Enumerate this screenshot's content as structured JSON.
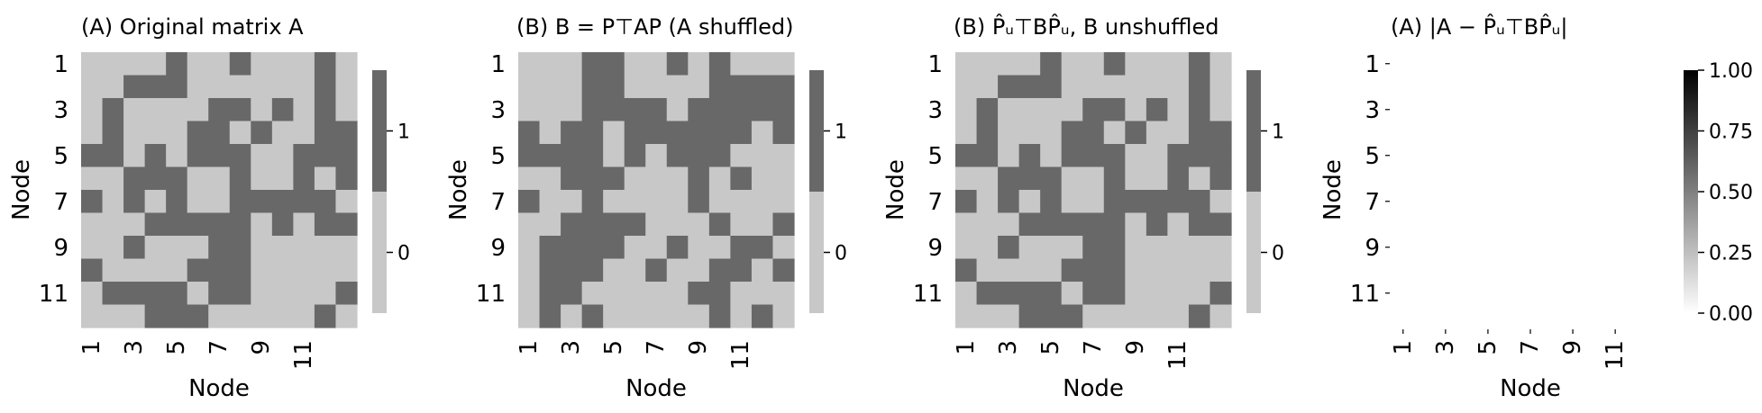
{
  "chart_data": [
    {
      "type": "heatmap",
      "title": "(A) Original matrix A",
      "xlabel": "Node",
      "ylabel": "Node",
      "x_ticks": [
        "1",
        "3",
        "5",
        "7",
        "9",
        "11"
      ],
      "y_ticks": [
        "1",
        "3",
        "5",
        "7",
        "9",
        "11"
      ],
      "colorbar": {
        "type": "discrete",
        "ticks": [
          "0",
          "1"
        ]
      },
      "values": [
        [
          0,
          0,
          0,
          0,
          1,
          0,
          0,
          1,
          0,
          0,
          0,
          1,
          0
        ],
        [
          0,
          0,
          1,
          1,
          1,
          0,
          0,
          0,
          0,
          0,
          0,
          1,
          0
        ],
        [
          0,
          1,
          0,
          0,
          0,
          0,
          1,
          1,
          0,
          1,
          0,
          1,
          0
        ],
        [
          0,
          1,
          0,
          0,
          0,
          1,
          1,
          0,
          1,
          0,
          0,
          1,
          1
        ],
        [
          1,
          1,
          0,
          1,
          0,
          1,
          1,
          1,
          0,
          0,
          1,
          1,
          1
        ],
        [
          0,
          0,
          1,
          1,
          1,
          0,
          0,
          1,
          0,
          0,
          1,
          0,
          1
        ],
        [
          1,
          0,
          1,
          0,
          1,
          0,
          0,
          1,
          1,
          1,
          1,
          1,
          0
        ],
        [
          0,
          0,
          0,
          1,
          1,
          1,
          1,
          1,
          0,
          1,
          0,
          1,
          1
        ],
        [
          0,
          0,
          1,
          0,
          0,
          0,
          1,
          1,
          0,
          0,
          0,
          0,
          0
        ],
        [
          1,
          0,
          0,
          0,
          0,
          1,
          1,
          1,
          0,
          0,
          0,
          0,
          0
        ],
        [
          0,
          1,
          1,
          1,
          1,
          0,
          1,
          1,
          0,
          0,
          0,
          0,
          1
        ],
        [
          0,
          0,
          0,
          1,
          1,
          1,
          0,
          0,
          0,
          0,
          0,
          1,
          0
        ]
      ]
    },
    {
      "type": "heatmap",
      "title": "(B) B = P⊤AP (A shuffled)",
      "xlabel": "Node",
      "ylabel": "Node",
      "x_ticks": [
        "1",
        "3",
        "5",
        "7",
        "9",
        "11"
      ],
      "y_ticks": [
        "1",
        "3",
        "5",
        "7",
        "9",
        "11"
      ],
      "colorbar": {
        "type": "discrete",
        "ticks": [
          "0",
          "1"
        ]
      },
      "values": [
        [
          0,
          0,
          0,
          1,
          1,
          0,
          0,
          1,
          0,
          1,
          0,
          0,
          0
        ],
        [
          0,
          0,
          0,
          1,
          1,
          0,
          0,
          0,
          0,
          1,
          1,
          1,
          1
        ],
        [
          0,
          0,
          0,
          1,
          1,
          1,
          1,
          0,
          1,
          1,
          1,
          1,
          1
        ],
        [
          1,
          0,
          1,
          1,
          0,
          1,
          1,
          1,
          1,
          1,
          1,
          0,
          1
        ],
        [
          1,
          1,
          1,
          1,
          0,
          1,
          0,
          1,
          1,
          1,
          0,
          0,
          0
        ],
        [
          0,
          0,
          1,
          1,
          1,
          0,
          0,
          0,
          1,
          0,
          1,
          0,
          0
        ],
        [
          1,
          0,
          0,
          1,
          0,
          0,
          0,
          0,
          1,
          0,
          0,
          0,
          0
        ],
        [
          0,
          0,
          1,
          1,
          1,
          1,
          0,
          0,
          0,
          1,
          0,
          0,
          1
        ],
        [
          0,
          1,
          1,
          1,
          1,
          0,
          0,
          1,
          0,
          0,
          1,
          1,
          0
        ],
        [
          0,
          1,
          1,
          1,
          0,
          0,
          1,
          0,
          0,
          1,
          1,
          0,
          1
        ],
        [
          0,
          1,
          1,
          0,
          0,
          0,
          0,
          0,
          1,
          1,
          0,
          0,
          0
        ],
        [
          0,
          1,
          0,
          1,
          0,
          0,
          0,
          0,
          0,
          1,
          0,
          1,
          0
        ]
      ]
    },
    {
      "type": "heatmap",
      "title": "(B) P̂ᵤ⊤BP̂ᵤ, B unshuffled",
      "xlabel": "Node",
      "ylabel": "Node",
      "x_ticks": [
        "1",
        "3",
        "5",
        "7",
        "9",
        "11"
      ],
      "y_ticks": [
        "1",
        "3",
        "5",
        "7",
        "9",
        "11"
      ],
      "colorbar": {
        "type": "discrete",
        "ticks": [
          "0",
          "1"
        ]
      },
      "values": [
        [
          0,
          0,
          0,
          0,
          1,
          0,
          0,
          1,
          0,
          0,
          0,
          1,
          0
        ],
        [
          0,
          0,
          1,
          1,
          1,
          0,
          0,
          0,
          0,
          0,
          0,
          1,
          0
        ],
        [
          0,
          1,
          0,
          0,
          0,
          0,
          1,
          1,
          0,
          1,
          0,
          1,
          0
        ],
        [
          0,
          1,
          0,
          0,
          0,
          1,
          1,
          0,
          1,
          0,
          0,
          1,
          1
        ],
        [
          1,
          1,
          0,
          1,
          0,
          1,
          1,
          1,
          0,
          0,
          1,
          1,
          1
        ],
        [
          0,
          0,
          1,
          1,
          1,
          0,
          0,
          1,
          0,
          0,
          1,
          0,
          1
        ],
        [
          1,
          0,
          1,
          0,
          1,
          0,
          0,
          1,
          1,
          1,
          1,
          1,
          0
        ],
        [
          0,
          0,
          0,
          1,
          1,
          1,
          1,
          1,
          0,
          1,
          0,
          1,
          1
        ],
        [
          0,
          0,
          1,
          0,
          0,
          0,
          1,
          1,
          0,
          0,
          0,
          0,
          0
        ],
        [
          1,
          0,
          0,
          0,
          0,
          1,
          1,
          1,
          0,
          0,
          0,
          0,
          0
        ],
        [
          0,
          1,
          1,
          1,
          1,
          0,
          1,
          1,
          0,
          0,
          0,
          0,
          1
        ],
        [
          0,
          0,
          0,
          1,
          1,
          1,
          0,
          0,
          0,
          0,
          0,
          1,
          0
        ]
      ]
    },
    {
      "type": "heatmap",
      "title": "(A) |A − P̂ᵤ⊤BP̂ᵤ|",
      "xlabel": "Node",
      "ylabel": "Node",
      "x_ticks": [
        "1",
        "3",
        "5",
        "7",
        "9",
        "11"
      ],
      "y_ticks": [
        "1",
        "3",
        "5",
        "7",
        "9",
        "11"
      ],
      "colorbar": {
        "type": "continuous",
        "range": [
          0,
          1
        ],
        "ticks": [
          "0.00",
          "0.25",
          "0.50",
          "0.75",
          "1.00"
        ]
      },
      "values": [
        [
          0,
          0,
          0,
          0,
          0,
          0,
          0,
          0,
          0,
          0,
          0,
          0,
          0
        ],
        [
          0,
          0,
          0,
          0,
          0,
          0,
          0,
          0,
          0,
          0,
          0,
          0,
          0
        ],
        [
          0,
          0,
          0,
          0,
          0,
          0,
          0,
          0,
          0,
          0,
          0,
          0,
          0
        ],
        [
          0,
          0,
          0,
          0,
          0,
          0,
          0,
          0,
          0,
          0,
          0,
          0,
          0
        ],
        [
          0,
          0,
          0,
          0,
          0,
          0,
          0,
          0,
          0,
          0,
          0,
          0,
          0
        ],
        [
          0,
          0,
          0,
          0,
          0,
          0,
          0,
          0,
          0,
          0,
          0,
          0,
          0
        ],
        [
          0,
          0,
          0,
          0,
          0,
          0,
          0,
          0,
          0,
          0,
          0,
          0,
          0
        ],
        [
          0,
          0,
          0,
          0,
          0,
          0,
          0,
          0,
          0,
          0,
          0,
          0,
          0
        ],
        [
          0,
          0,
          0,
          0,
          0,
          0,
          0,
          0,
          0,
          0,
          0,
          0,
          0
        ],
        [
          0,
          0,
          0,
          0,
          0,
          0,
          0,
          0,
          0,
          0,
          0,
          0,
          0
        ],
        [
          0,
          0,
          0,
          0,
          0,
          0,
          0,
          0,
          0,
          0,
          0,
          0,
          0
        ],
        [
          0,
          0,
          0,
          0,
          0,
          0,
          0,
          0,
          0,
          0,
          0,
          0,
          0
        ]
      ]
    }
  ],
  "colors": {
    "zero": "#c8c8c8",
    "one": "#686868",
    "cbar_min": "#ffffff",
    "cbar_max": "#000000"
  }
}
